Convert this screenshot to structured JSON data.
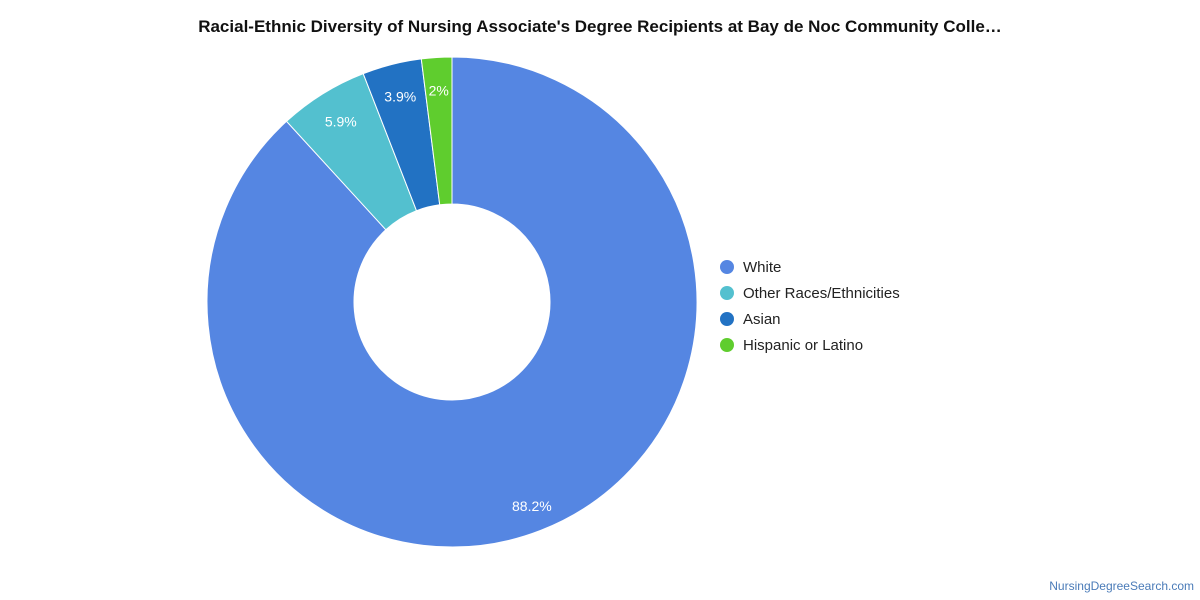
{
  "chart_data": {
    "type": "pie",
    "style": "donut",
    "title": "Racial-Ethnic Diversity of Nursing Associate's Degree Recipients at Bay de Noc Community Colle…",
    "legend_position": "right",
    "slices": [
      {
        "label": "White",
        "value": 88.2,
        "display": "88.2%",
        "color": "#5586e2"
      },
      {
        "label": "Other Races/Ethnicities",
        "value": 5.9,
        "display": "5.9%",
        "color": "#53c0cf"
      },
      {
        "label": "Asian",
        "value": 3.9,
        "display": "3.9%",
        "color": "#2272c3"
      },
      {
        "label": "Hispanic or Latino",
        "value": 2,
        "display": "2%",
        "color": "#5fcd2e"
      }
    ]
  },
  "footer": {
    "source": "NursingDegreeSearch.com"
  }
}
